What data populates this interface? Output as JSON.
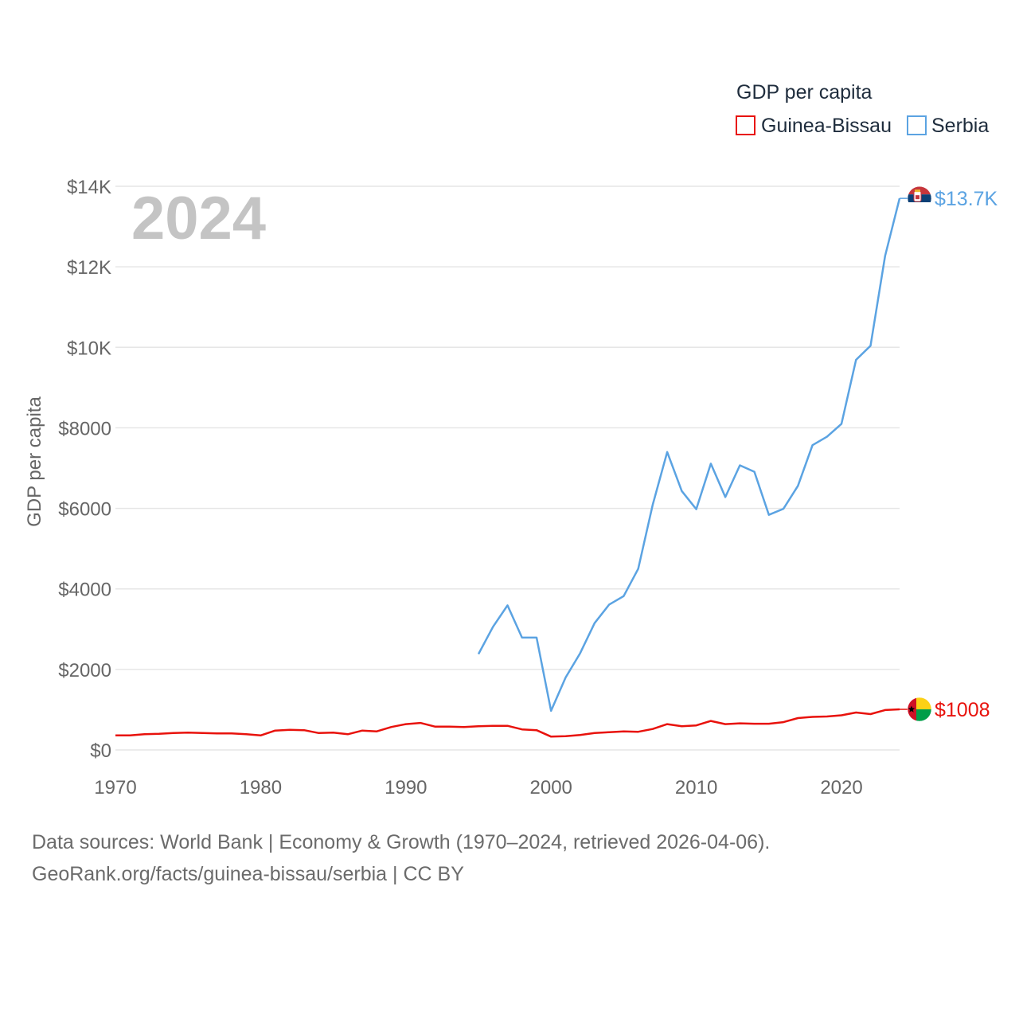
{
  "chart_data": {
    "type": "line",
    "title": "GDP per capita",
    "year_label": "2024",
    "ylabel": "GDP per capita",
    "xlabel": "",
    "xlim": [
      1970,
      2024
    ],
    "ylim": [
      0,
      14000
    ],
    "x_ticks": [
      "1970",
      "1980",
      "1990",
      "2000",
      "2010",
      "2020"
    ],
    "y_ticks": [
      {
        "value": 0,
        "label": "$0"
      },
      {
        "value": 2000,
        "label": "$2000"
      },
      {
        "value": 4000,
        "label": "$4000"
      },
      {
        "value": 6000,
        "label": "$6000"
      },
      {
        "value": 8000,
        "label": "$8000"
      },
      {
        "value": 10000,
        "label": "$10K"
      },
      {
        "value": 12000,
        "label": "$12K"
      },
      {
        "value": 14000,
        "label": "$14K"
      }
    ],
    "legend": {
      "title": "GDP per capita",
      "position": "top-right"
    },
    "series": [
      {
        "name": "Guinea-Bissau",
        "color": "#e8120c",
        "flag_icon": "guinea-bissau-flag-icon",
        "end_label": "$1008",
        "x": [
          1970,
          1971,
          1972,
          1973,
          1974,
          1975,
          1976,
          1977,
          1978,
          1979,
          1980,
          1981,
          1982,
          1983,
          1984,
          1985,
          1986,
          1987,
          1988,
          1989,
          1990,
          1991,
          1992,
          1993,
          1994,
          1995,
          1996,
          1997,
          1998,
          1999,
          2000,
          2001,
          2002,
          2003,
          2004,
          2005,
          2006,
          2007,
          2008,
          2009,
          2010,
          2011,
          2012,
          2013,
          2014,
          2015,
          2016,
          2017,
          2018,
          2019,
          2020,
          2021,
          2022,
          2023,
          2024
        ],
        "values": [
          360,
          360,
          390,
          400,
          420,
          430,
          420,
          410,
          410,
          390,
          360,
          480,
          500,
          490,
          420,
          430,
          390,
          480,
          460,
          570,
          640,
          670,
          580,
          580,
          570,
          590,
          600,
          600,
          510,
          490,
          330,
          340,
          370,
          420,
          440,
          460,
          450,
          520,
          640,
          590,
          610,
          720,
          640,
          660,
          650,
          650,
          690,
          790,
          820,
          830,
          860,
          930,
          890,
          990,
          1008
        ]
      },
      {
        "name": "Serbia",
        "color": "#5ba3e2",
        "flag_icon": "serbia-flag-icon",
        "end_label": "$13.7K",
        "x": [
          1995,
          1996,
          1997,
          1998,
          1999,
          2000,
          2001,
          2002,
          2003,
          2004,
          2005,
          2006,
          2007,
          2008,
          2009,
          2010,
          2011,
          2012,
          2013,
          2014,
          2015,
          2016,
          2017,
          2018,
          2019,
          2020,
          2021,
          2022,
          2023,
          2024
        ],
        "values": [
          2380,
          3060,
          3590,
          2790,
          2790,
          970,
          1800,
          2400,
          3150,
          3610,
          3820,
          4500,
          6090,
          7400,
          6430,
          5980,
          7110,
          6280,
          7070,
          6910,
          5840,
          5990,
          6560,
          7570,
          7780,
          8100,
          9690,
          10040,
          12270,
          13700
        ]
      }
    ]
  },
  "footer": {
    "source_line": "Data sources: World Bank | Economy & Growth (1970–2024, retrieved 2026-04-06).",
    "credit_line": "GeoRank.org/facts/guinea-bissau/serbia | CC BY"
  }
}
